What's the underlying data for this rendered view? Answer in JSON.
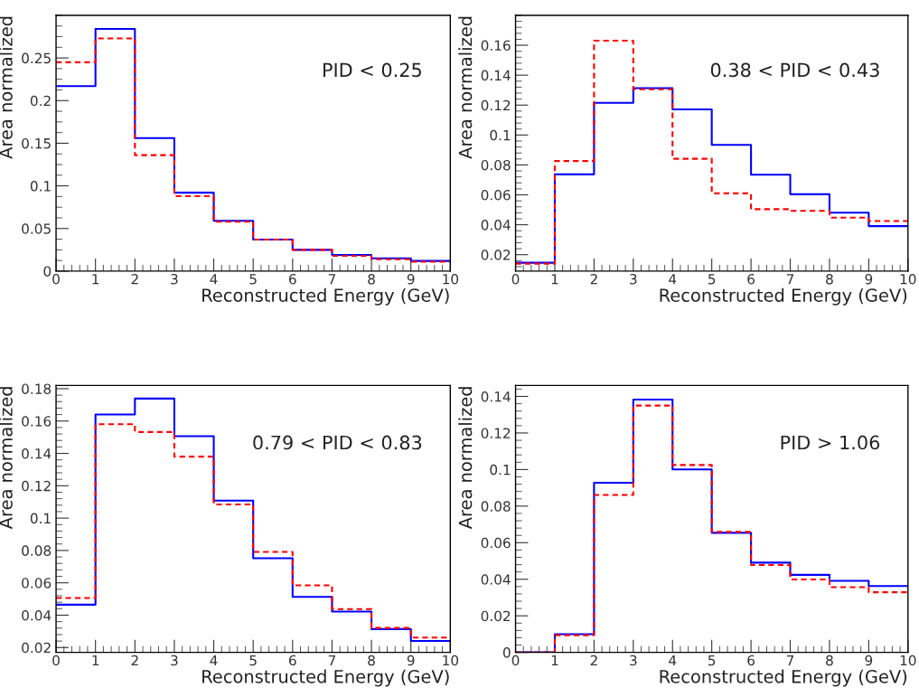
{
  "chart_data": [
    {
      "type": "histogram",
      "xlabel": "Reconstructed Energy (GeV)",
      "ylabel": "Area normalized",
      "annotations": [
        "PID < 0.25"
      ],
      "bins": [
        0,
        1,
        2,
        3,
        4,
        5,
        6,
        7,
        8,
        9,
        10
      ],
      "xlim": [
        0,
        10
      ],
      "xticks": [
        0,
        1,
        2,
        3,
        4,
        5,
        6,
        7,
        8,
        9,
        10
      ],
      "ylim": [
        0,
        0.3
      ],
      "yticks": [
        0,
        0.05,
        0.1,
        0.15,
        0.2,
        0.25
      ],
      "grid": false,
      "series": [
        {
          "color": "#0000ff",
          "line_style": "solid",
          "values": [
            0.217,
            0.284,
            0.156,
            0.092,
            0.059,
            0.037,
            0.025,
            0.019,
            0.015,
            0.012
          ]
        },
        {
          "color": "#ff0000",
          "line_style": "dashed",
          "values": [
            0.245,
            0.273,
            0.136,
            0.088,
            0.058,
            0.037,
            0.025,
            0.018,
            0.014,
            0.011
          ]
        }
      ]
    },
    {
      "type": "histogram",
      "xlabel": "Reconstructed Energy (GeV)",
      "ylabel": "Area normalized",
      "annotations": [
        "0.38 < PID < 0.43"
      ],
      "bins": [
        0,
        1,
        2,
        3,
        4,
        5,
        6,
        7,
        8,
        9,
        10
      ],
      "xlim": [
        0,
        10
      ],
      "xticks": [
        0,
        1,
        2,
        3,
        4,
        5,
        6,
        7,
        8,
        9,
        10
      ],
      "ylim": [
        0.009,
        0.18
      ],
      "yticks": [
        0.02,
        0.04,
        0.06,
        0.08,
        0.1,
        0.12,
        0.14,
        0.16
      ],
      "grid": false,
      "series": [
        {
          "color": "#0000ff",
          "line_style": "solid",
          "values": [
            0.0146,
            0.0737,
            0.1215,
            0.1313,
            0.1171,
            0.0934,
            0.0735,
            0.0604,
            0.0481,
            0.0391
          ]
        },
        {
          "color": "#ff0000",
          "line_style": "dashed",
          "values": [
            0.014,
            0.0826,
            0.1631,
            0.1306,
            0.0841,
            0.061,
            0.0504,
            0.0493,
            0.0448,
            0.0425
          ]
        }
      ]
    },
    {
      "type": "histogram",
      "xlabel": "Reconstructed Energy (GeV)",
      "ylabel": "Area normalized",
      "annotations": [
        "0.79 < PID < 0.83"
      ],
      "bins": [
        0,
        1,
        2,
        3,
        4,
        5,
        6,
        7,
        8,
        9,
        10
      ],
      "xlim": [
        0,
        10
      ],
      "xticks": [
        0,
        1,
        2,
        3,
        4,
        5,
        6,
        7,
        8,
        9,
        10
      ],
      "ylim": [
        0.017,
        0.182
      ],
      "yticks": [
        0.02,
        0.04,
        0.06,
        0.08,
        0.1,
        0.12,
        0.14,
        0.16,
        0.18
      ],
      "grid": false,
      "series": [
        {
          "color": "#0000ff",
          "line_style": "solid",
          "values": [
            0.0465,
            0.164,
            0.1739,
            0.1506,
            0.1108,
            0.0752,
            0.0513,
            0.0422,
            0.0314,
            0.0241
          ]
        },
        {
          "color": "#ff0000",
          "line_style": "dashed",
          "values": [
            0.0506,
            0.158,
            0.1532,
            0.138,
            0.1084,
            0.0791,
            0.0584,
            0.0438,
            0.0321,
            0.0262
          ]
        }
      ]
    },
    {
      "type": "histogram",
      "xlabel": "Reconstructed Energy (GeV)",
      "ylabel": "Area normalized",
      "annotations": [
        "PID > 1.06"
      ],
      "bins": [
        0,
        1,
        2,
        3,
        4,
        5,
        6,
        7,
        8,
        9,
        10
      ],
      "xlim": [
        0,
        10
      ],
      "xticks": [
        0,
        1,
        2,
        3,
        4,
        5,
        6,
        7,
        8,
        9,
        10
      ],
      "ylim": [
        0,
        0.146
      ],
      "yticks": [
        0,
        0.02,
        0.04,
        0.06,
        0.08,
        0.1,
        0.12,
        0.14
      ],
      "grid": false,
      "series": [
        {
          "color": "#0000ff",
          "line_style": "solid",
          "values": [
            0,
            0.01,
            0.0928,
            0.1383,
            0.1001,
            0.0654,
            0.0491,
            0.0424,
            0.0391,
            0.0363
          ]
        },
        {
          "color": "#ff0000",
          "line_style": "dashed",
          "values": [
            0,
            0.0094,
            0.0861,
            0.135,
            0.1025,
            0.0659,
            0.0478,
            0.0399,
            0.0357,
            0.0329
          ]
        }
      ]
    }
  ]
}
